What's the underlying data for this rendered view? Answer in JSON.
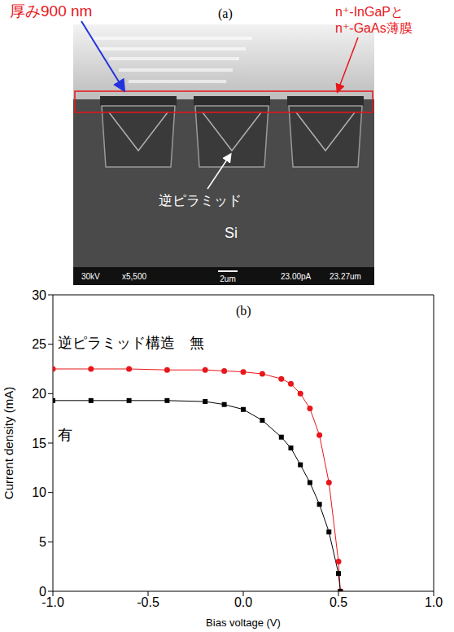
{
  "panel_a": {
    "label": "(a)",
    "thickness_label": "厚み900 nm",
    "film_label": [
      "n⁺-InGaPと",
      "n⁺-GaAs薄膜"
    ],
    "pyramid_label": "逆ピラミッド",
    "substrate_label": "Si",
    "sem_info": [
      "30kV",
      "x5,500",
      "2um",
      "23.00pA",
      "23.27um"
    ]
  },
  "chart_data": {
    "type": "line",
    "title": "(b)",
    "x_label": "Bias voltage (V)",
    "y_label": "Current density (mA)",
    "x": [
      -1.0,
      -0.8,
      -0.6,
      -0.4,
      -0.2,
      -0.1,
      0.0,
      0.1,
      0.2,
      0.25,
      0.3,
      0.35,
      0.4,
      0.45,
      0.5,
      0.51
    ],
    "series": [
      {
        "name": "逆ピラミッド構造　無",
        "color": "#e8161b",
        "marker": "circle",
        "line_style": "solid",
        "values": [
          22.5,
          22.5,
          22.5,
          22.4,
          22.4,
          22.3,
          22.2,
          22.0,
          21.5,
          21.0,
          20.0,
          18.5,
          15.8,
          11.0,
          3.0,
          0.0
        ]
      },
      {
        "name": "有",
        "color": "#000000",
        "marker": "square",
        "line_style": "solid",
        "values": [
          19.3,
          19.3,
          19.3,
          19.3,
          19.2,
          18.9,
          18.4,
          17.3,
          15.6,
          14.5,
          12.8,
          11.0,
          8.8,
          6.0,
          1.8,
          0.0
        ]
      }
    ],
    "xlim": [
      -1.0,
      1.0
    ],
    "ylim": [
      0,
      30
    ],
    "xticks": [
      {
        "value": -1.0,
        "label": "-1.0"
      },
      {
        "value": -0.5,
        "label": "-0.5"
      },
      {
        "value": 0.0,
        "label": "0.0"
      },
      {
        "value": 0.5,
        "label": "0.5"
      },
      {
        "value": 1.0,
        "label": "1.0"
      }
    ],
    "yticks": [
      0,
      5,
      10,
      15,
      20,
      25,
      30
    ]
  }
}
